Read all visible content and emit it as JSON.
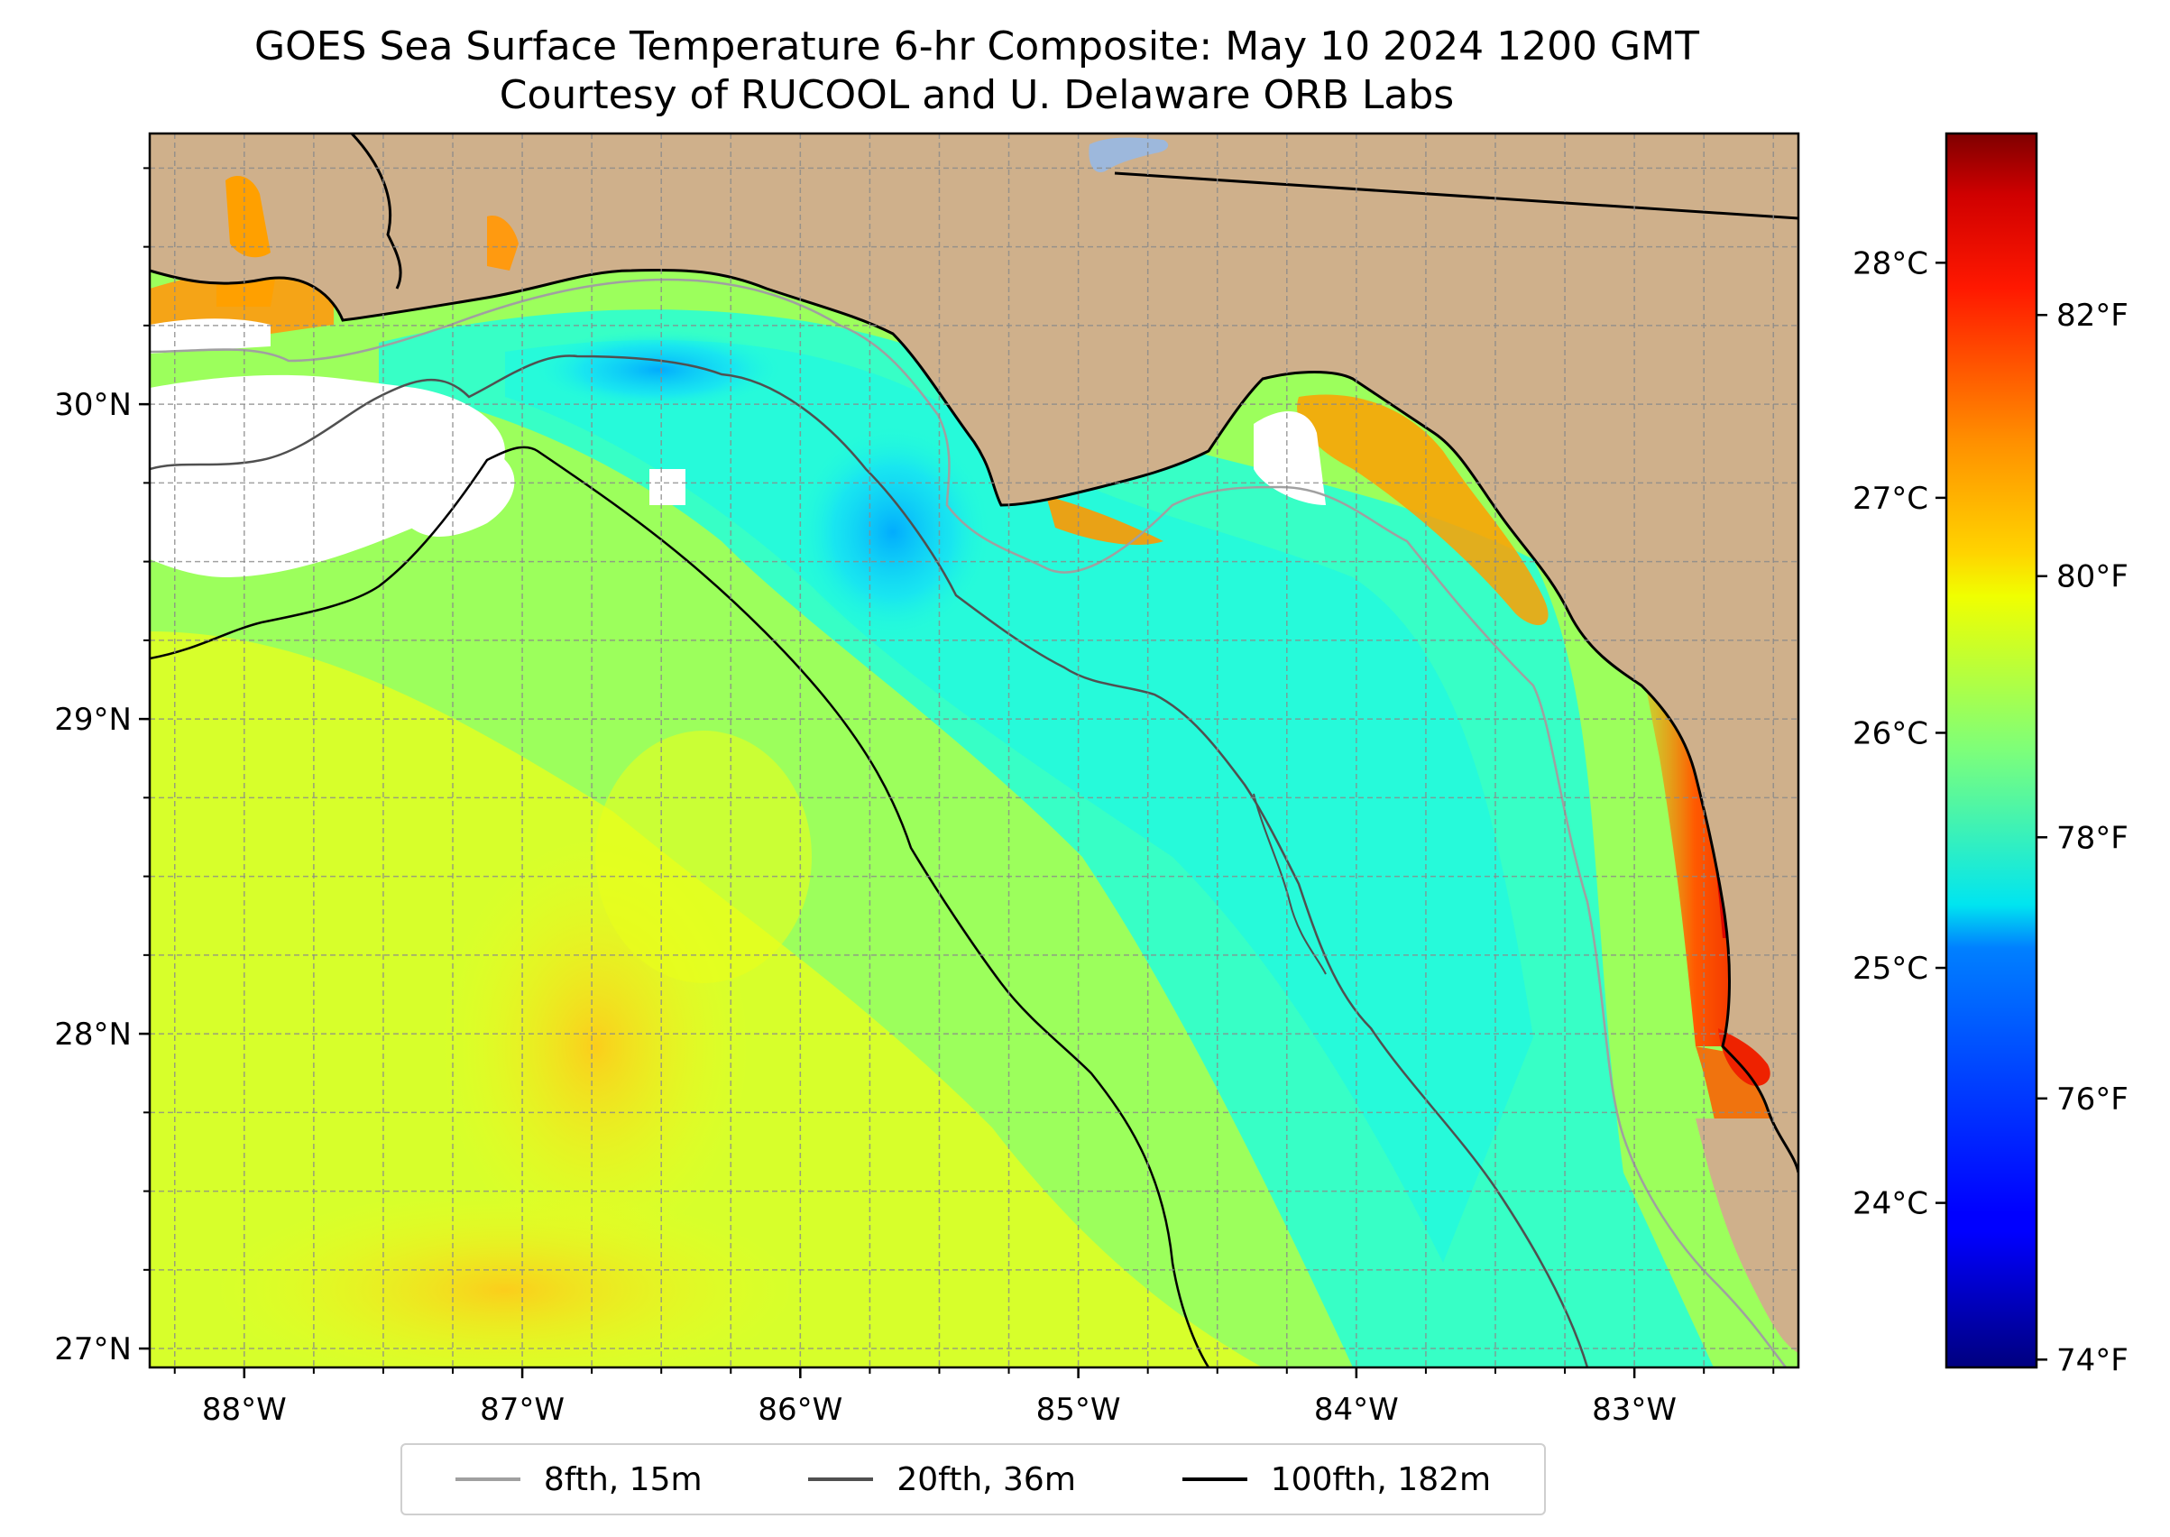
{
  "title": {
    "line1": "GOES Sea Surface Temperature 6-hr Composite: May 10 2024 1200 GMT",
    "line2": "Courtesy of RUCOOL and U. Delaware ORB Labs"
  },
  "map": {
    "lon_range": [
      -88.34,
      -82.41
    ],
    "lat_range": [
      26.94,
      30.86
    ],
    "lon_ticks": [
      {
        "value": -88,
        "label": "88°W"
      },
      {
        "value": -87,
        "label": "87°W"
      },
      {
        "value": -86,
        "label": "86°W"
      },
      {
        "value": -85,
        "label": "85°W"
      },
      {
        "value": -84,
        "label": "84°W"
      },
      {
        "value": -83,
        "label": "83°W"
      }
    ],
    "lat_ticks": [
      {
        "value": 30,
        "label": "30°N"
      },
      {
        "value": 29,
        "label": "29°N"
      },
      {
        "value": 28,
        "label": "28°N"
      },
      {
        "value": 27,
        "label": "27°N"
      }
    ],
    "grid": true,
    "colors": {
      "land": "#cfb08b",
      "no_data": "#ffffff",
      "lake": "#9db8dc"
    }
  },
  "colorbar": {
    "colormap": "jet",
    "range_c": [
      23.3,
      28.55
    ],
    "celsius_ticks": [
      {
        "value": 28,
        "label": "28°C"
      },
      {
        "value": 27,
        "label": "27°C"
      },
      {
        "value": 26,
        "label": "26°C"
      },
      {
        "value": 25,
        "label": "25°C"
      },
      {
        "value": 24,
        "label": "24°C"
      }
    ],
    "fahrenheit_ticks": [
      {
        "value": 82,
        "label": "82°F"
      },
      {
        "value": 80,
        "label": "80°F"
      },
      {
        "value": 78,
        "label": "78°F"
      },
      {
        "value": 76,
        "label": "76°F"
      },
      {
        "value": 74,
        "label": "74°F"
      }
    ]
  },
  "legend": {
    "items": [
      {
        "label": "8fth, 15m",
        "color": "#a0a0a0"
      },
      {
        "label": "20fth, 36m",
        "color": "#505050"
      },
      {
        "label": "100fth, 182m",
        "color": "#000000"
      }
    ]
  }
}
